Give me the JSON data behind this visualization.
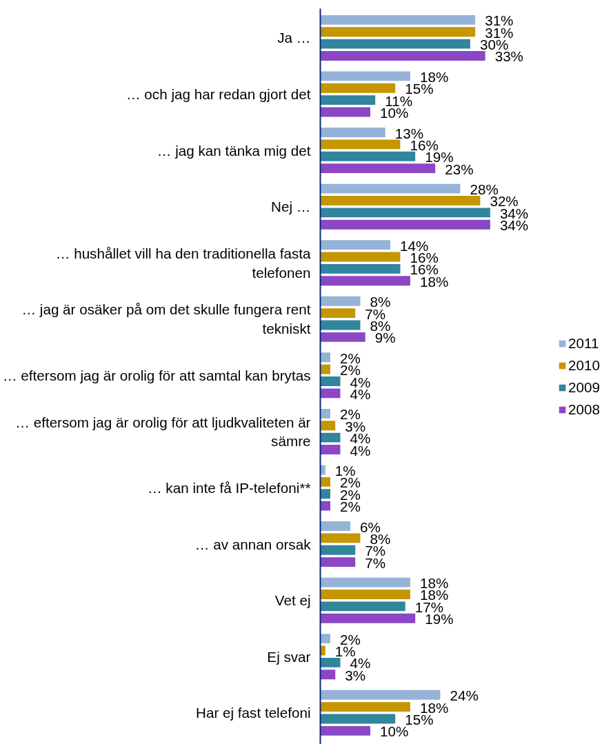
{
  "chart_data": {
    "type": "bar",
    "orientation": "horizontal",
    "categories": [
      "Ja …",
      "… och jag har redan gjort det",
      "… jag kan tänka mig det",
      "Nej …",
      "… hushållet vill ha den traditionella fasta telefonen",
      "… jag är osäker på om det skulle fungera rent tekniskt",
      "… eftersom jag är orolig för att samtal kan brytas",
      "… eftersom jag är orolig för att ljudkvaliteten är sämre",
      "… kan inte få IP-telefoni**",
      "… av annan orsak",
      "Vet ej",
      "Ej svar",
      "Har ej fast telefoni"
    ],
    "series": [
      {
        "name": "2011",
        "color": "#95b3d7",
        "values": [
          31,
          18,
          13,
          28,
          14,
          8,
          2,
          2,
          1,
          6,
          18,
          2,
          24
        ],
        "value_labels": [
          "31%",
          "18%",
          "13%",
          "28%",
          "14%",
          "8%",
          "2%",
          "2%",
          "1%",
          "6%",
          "18%",
          "2%",
          "24%"
        ]
      },
      {
        "name": "2010",
        "color": "#c49600",
        "values": [
          31,
          15,
          16,
          32,
          16,
          7,
          2,
          3,
          2,
          8,
          18,
          1,
          18
        ],
        "value_labels": [
          "31%",
          "15%",
          "16%",
          "32%",
          "16%",
          "7%",
          "2%",
          "3%",
          "2%",
          "8%",
          "18%",
          "1%",
          "18%"
        ]
      },
      {
        "name": "2009",
        "color": "#31859c",
        "values": [
          30,
          11,
          19,
          34,
          16,
          8,
          4,
          4,
          2,
          7,
          17,
          4,
          15
        ],
        "value_labels": [
          "30%",
          "11%",
          "19%",
          "34%",
          "16%",
          "8%",
          "4%",
          "4%",
          "2%",
          "7%",
          "17%",
          "4%",
          "15%"
        ]
      },
      {
        "name": "2008",
        "color": "#8b47c5",
        "values": [
          33,
          10,
          23,
          34,
          18,
          9,
          4,
          4,
          2,
          7,
          19,
          3,
          10
        ],
        "value_labels": [
          "33%",
          "10%",
          "23%",
          "34%",
          "18%",
          "9%",
          "4%",
          "4%",
          "2%",
          "7%",
          "19%",
          "3%",
          "10%"
        ]
      }
    ],
    "legend": "right",
    "tick_labels": "y"
  }
}
